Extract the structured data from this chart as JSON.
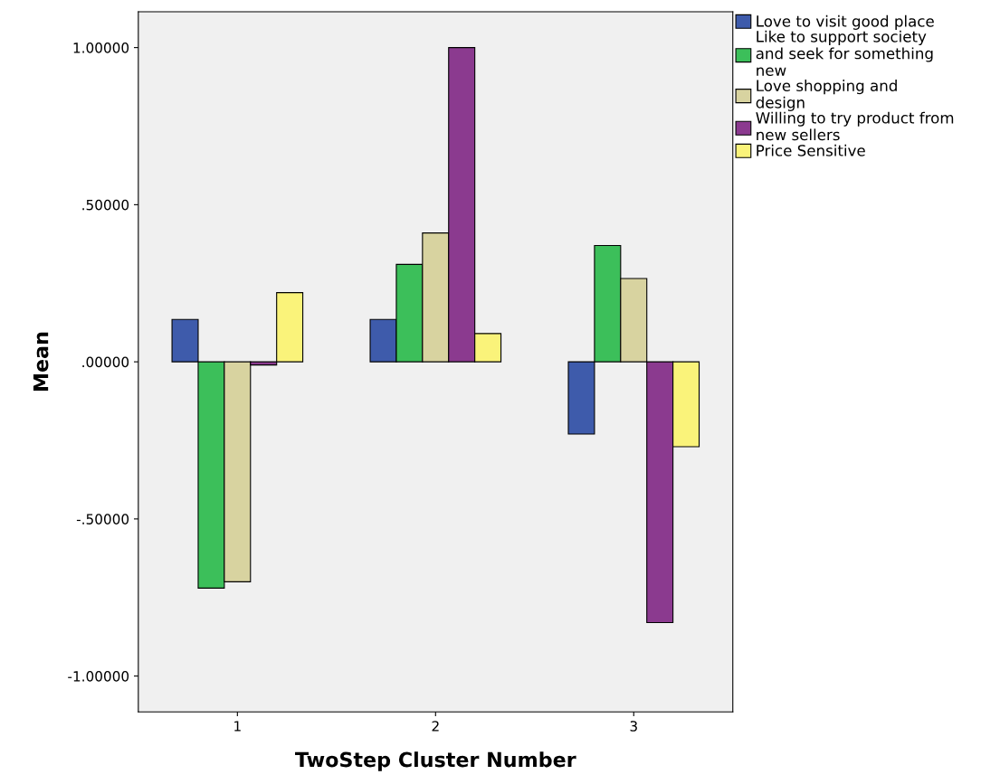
{
  "chart_data": {
    "type": "bar",
    "xlabel": "TwoStep Cluster Number",
    "ylabel": "Mean",
    "categories": [
      "1",
      "2",
      "3"
    ],
    "series": [
      {
        "name": "Love to visit good place",
        "color": "#3e5bab",
        "values": [
          0.135,
          0.135,
          -0.23
        ]
      },
      {
        "name": "Like to support society\nand seek for something\nnew",
        "color": "#3cbf5a",
        "values": [
          -0.72,
          0.31,
          0.37
        ]
      },
      {
        "name": "Love shopping and\ndesign",
        "color": "#d8d3a0",
        "values": [
          -0.7,
          0.41,
          0.265
        ]
      },
      {
        "name": "Willing to try product from\nnew sellers",
        "color": "#8b3a8f",
        "values": [
          -0.01,
          1.0,
          -0.83
        ]
      },
      {
        "name": "Price Sensitive",
        "color": "#faf37a",
        "values": [
          0.22,
          0.09,
          -0.27
        ]
      }
    ],
    "ylim": [
      -1.114,
      1.114
    ],
    "yticks": [
      {
        "value": -1.0,
        "label": "-1.00000"
      },
      {
        "value": -0.5,
        "label": "-.50000"
      },
      {
        "value": 0.0,
        "label": ".00000"
      },
      {
        "value": 0.5,
        "label": ".50000"
      },
      {
        "value": 1.0,
        "label": "1.00000"
      }
    ],
    "grid": false,
    "legend": "top right"
  }
}
